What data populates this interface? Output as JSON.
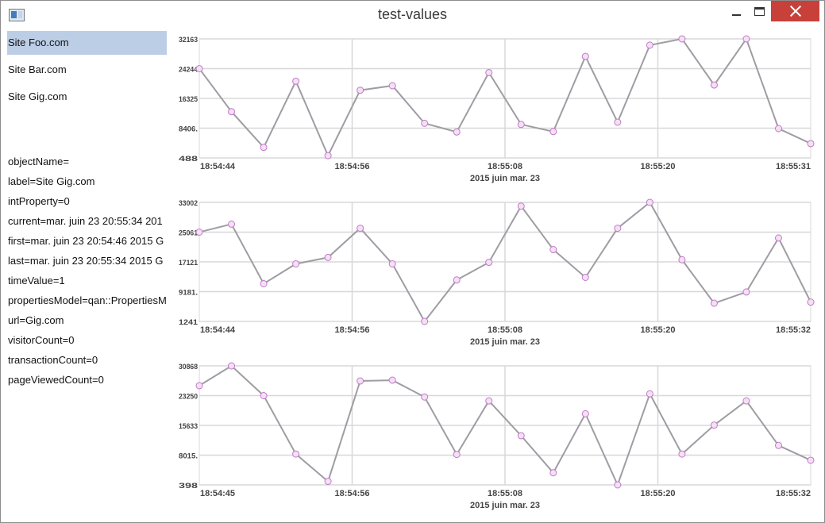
{
  "window": {
    "title": "test-values"
  },
  "sites": [
    {
      "label": "Site Foo.com",
      "selected": true
    },
    {
      "label": "Site Bar.com",
      "selected": false
    },
    {
      "label": "Site Gig.com",
      "selected": false
    }
  ],
  "properties": [
    "objectName=",
    "label=Site Gig.com",
    "intProperty=0",
    "current=mar. juin 23 20:55:34 201",
    "first=mar. juin 23 20:54:46 2015 G",
    "last=mar. juin 23 20:55:34 2015 G",
    "timeValue=1",
    "propertiesModel=qan::PropertiesM",
    "url=Gig.com",
    "visitorCount=0",
    "transactionCount=0",
    "pageViewedCount=0"
  ],
  "colors": {
    "selection": "#bccde6",
    "line": "#a09ca4",
    "point_fill": "#f4e0f4",
    "point_stroke": "#c07ac8",
    "grid": "#d8d8d8",
    "close_button": "#c7403a"
  },
  "icons": {
    "app": "app-window-icon",
    "minimize": "minimize-icon",
    "maximize": "maximize-icon",
    "close": "close-icon"
  },
  "chart_data": [
    {
      "type": "line",
      "xlabel": "2015 juin mar. 23",
      "ylabel": "",
      "ylim": [
        488,
        32163
      ],
      "y_ticks": [
        "32163",
        "24244",
        "16325",
        "8406.",
        "488"
      ],
      "x_ticks": [
        "18:54:44",
        "18:54:56",
        "18:55:08",
        "18:55:20",
        "18:55:31"
      ],
      "grid": true,
      "values": [
        24244,
        12800,
        3300,
        20900,
        1100,
        18500,
        19700,
        9700,
        7400,
        23200,
        9400,
        7500,
        27500,
        10000,
        30500,
        32163,
        19900,
        32163,
        8300,
        4300
      ]
    },
    {
      "type": "line",
      "xlabel": "2015 juin mar. 23",
      "ylabel": "",
      "ylim": [
        1241,
        33002
      ],
      "y_ticks": [
        "33002",
        "25061",
        "17121",
        "9181.",
        "1241"
      ],
      "x_ticks": [
        "18:54:44",
        "18:54:56",
        "18:55:08",
        "18:55:20",
        "18:55:32"
      ],
      "grid": true,
      "values": [
        25061,
        27200,
        11300,
        16600,
        18300,
        26100,
        16600,
        1241,
        12300,
        17000,
        32000,
        20400,
        13000,
        26100,
        33002,
        17700,
        6100,
        9100,
        23500,
        6400
      ]
    },
    {
      "type": "line",
      "xlabel": "2015 juin mar. 23",
      "ylabel": "",
      "ylim": [
        398,
        30868
      ],
      "y_ticks": [
        "30868",
        "23250",
        "15633",
        "8015.",
        "398"
      ],
      "x_ticks": [
        "18:54:45",
        "18:54:56",
        "18:55:08",
        "18:55:20",
        "18:55:32"
      ],
      "grid": true,
      "values": [
        25800,
        30868,
        23250,
        8300,
        1300,
        27000,
        27200,
        22900,
        8200,
        21900,
        13000,
        3500,
        18600,
        398,
        23700,
        8300,
        15700,
        21900,
        10500,
        6700
      ]
    }
  ]
}
